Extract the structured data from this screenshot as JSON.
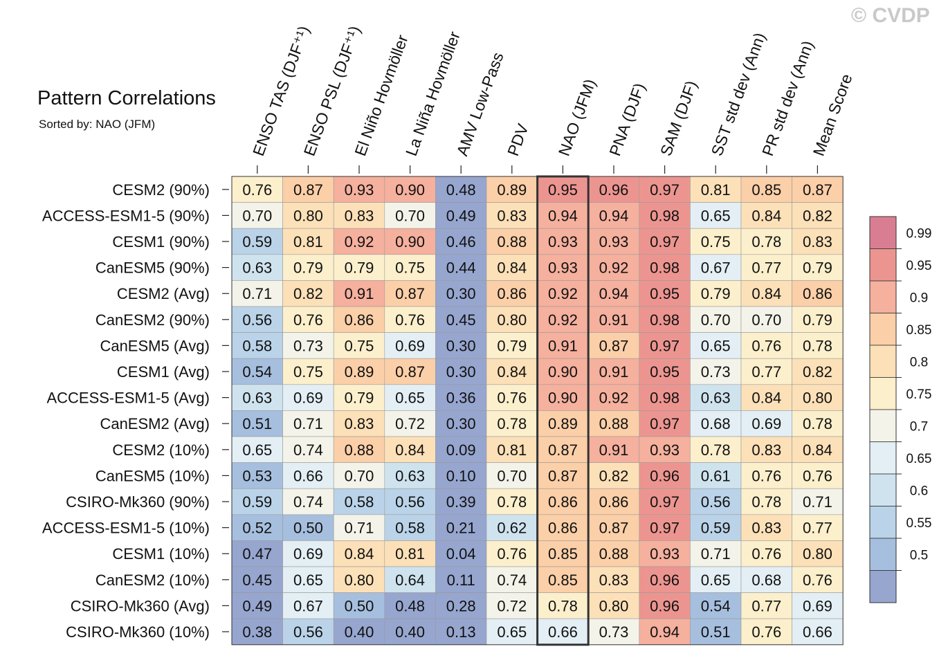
{
  "watermark": "© CVDP",
  "chart_data": {
    "type": "heatmap",
    "title": "Pattern Correlations",
    "subtitle": "Sorted by: NAO (JFM)",
    "highlight_column": "NAO (JFM)",
    "columns": [
      "ENSO TAS (DJF⁺¹)",
      "ENSO PSL (DJF⁺¹)",
      "El Niño Hovmöller",
      "La Niña Hovmöller",
      "AMV Low-Pass",
      "PDV",
      "NAO (JFM)",
      "PNA (DJF)",
      "SAM (DJF)",
      "SST std dev (Ann)",
      "PR std dev (Ann)",
      "Mean Score"
    ],
    "rows": [
      "CESM2 (90%)",
      "ACCESS-ESM1-5 (90%)",
      "CESM1 (90%)",
      "CanESM5 (90%)",
      "CESM2 (Avg)",
      "CanESM2 (90%)",
      "CanESM5 (Avg)",
      "CESM1 (Avg)",
      "ACCESS-ESM1-5 (Avg)",
      "CanESM2 (Avg)",
      "CESM2 (10%)",
      "CanESM5 (10%)",
      "CSIRO-Mk360 (90%)",
      "ACCESS-ESM1-5 (10%)",
      "CESM1 (10%)",
      "CanESM2 (10%)",
      "CSIRO-Mk360 (Avg)",
      "CSIRO-Mk360 (10%)"
    ],
    "values": [
      [
        "0.76",
        "0.87",
        "0.93",
        "0.90",
        "0.48",
        "0.89",
        "0.95",
        "0.96",
        "0.97",
        "0.81",
        "0.85",
        "0.87"
      ],
      [
        "0.70",
        "0.80",
        "0.83",
        "0.70",
        "0.49",
        "0.83",
        "0.94",
        "0.94",
        "0.98",
        "0.65",
        "0.84",
        "0.82"
      ],
      [
        "0.59",
        "0.81",
        "0.92",
        "0.90",
        "0.46",
        "0.88",
        "0.93",
        "0.93",
        "0.97",
        "0.75",
        "0.78",
        "0.83"
      ],
      [
        "0.63",
        "0.79",
        "0.79",
        "0.75",
        "0.44",
        "0.84",
        "0.93",
        "0.92",
        "0.98",
        "0.67",
        "0.77",
        "0.79"
      ],
      [
        "0.71",
        "0.82",
        "0.91",
        "0.87",
        "0.30",
        "0.86",
        "0.92",
        "0.94",
        "0.95",
        "0.79",
        "0.84",
        "0.86"
      ],
      [
        "0.56",
        "0.76",
        "0.86",
        "0.76",
        "0.45",
        "0.80",
        "0.92",
        "0.91",
        "0.98",
        "0.70",
        "0.70",
        "0.79"
      ],
      [
        "0.58",
        "0.73",
        "0.75",
        "0.69",
        "0.30",
        "0.79",
        "0.91",
        "0.87",
        "0.97",
        "0.65",
        "0.76",
        "0.78"
      ],
      [
        "0.54",
        "0.75",
        "0.89",
        "0.87",
        "0.30",
        "0.84",
        "0.90",
        "0.91",
        "0.95",
        "0.73",
        "0.77",
        "0.82"
      ],
      [
        "0.63",
        "0.69",
        "0.79",
        "0.65",
        "0.36",
        "0.76",
        "0.90",
        "0.92",
        "0.98",
        "0.63",
        "0.84",
        "0.80"
      ],
      [
        "0.51",
        "0.71",
        "0.83",
        "0.72",
        "0.30",
        "0.78",
        "0.89",
        "0.88",
        "0.97",
        "0.68",
        "0.69",
        "0.78"
      ],
      [
        "0.65",
        "0.74",
        "0.88",
        "0.84",
        "0.09",
        "0.81",
        "0.87",
        "0.91",
        "0.93",
        "0.78",
        "0.83",
        "0.84"
      ],
      [
        "0.53",
        "0.66",
        "0.70",
        "0.63",
        "0.10",
        "0.70",
        "0.87",
        "0.82",
        "0.96",
        "0.61",
        "0.76",
        "0.76"
      ],
      [
        "0.59",
        "0.74",
        "0.58",
        "0.56",
        "0.39",
        "0.78",
        "0.86",
        "0.86",
        "0.97",
        "0.56",
        "0.78",
        "0.71"
      ],
      [
        "0.52",
        "0.50",
        "0.71",
        "0.58",
        "0.21",
        "0.62",
        "0.86",
        "0.87",
        "0.97",
        "0.59",
        "0.83",
        "0.77"
      ],
      [
        "0.47",
        "0.69",
        "0.84",
        "0.81",
        "0.04",
        "0.76",
        "0.85",
        "0.88",
        "0.93",
        "0.71",
        "0.76",
        "0.80"
      ],
      [
        "0.45",
        "0.65",
        "0.80",
        "0.64",
        "0.11",
        "0.74",
        "0.85",
        "0.83",
        "0.96",
        "0.65",
        "0.68",
        "0.76"
      ],
      [
        "0.49",
        "0.67",
        "0.50",
        "0.48",
        "0.28",
        "0.72",
        "0.78",
        "0.80",
        "0.96",
        "0.54",
        "0.77",
        "0.69"
      ],
      [
        "0.38",
        "0.56",
        "0.40",
        "0.40",
        "0.13",
        "0.65",
        "0.66",
        "0.73",
        "0.94",
        "0.51",
        "0.76",
        "0.66"
      ]
    ],
    "colorbar": {
      "labels": [
        "0.99",
        "0.95",
        "0.9",
        "0.85",
        "0.8",
        "0.75",
        "0.7",
        "0.65",
        "0.6",
        "0.55",
        "0.5"
      ],
      "levels": [
        0.5,
        0.55,
        0.6,
        0.65,
        0.7,
        0.75,
        0.8,
        0.85,
        0.9,
        0.95,
        0.99
      ],
      "colors": [
        "#97a6cf",
        "#a6bfde",
        "#bad3e8",
        "#cfe3ef",
        "#e3eff4",
        "#f3f3e9",
        "#fcefcc",
        "#fce0b8",
        "#fbcfa8",
        "#f5b09e",
        "#ec9590",
        "#d97e92"
      ]
    }
  }
}
